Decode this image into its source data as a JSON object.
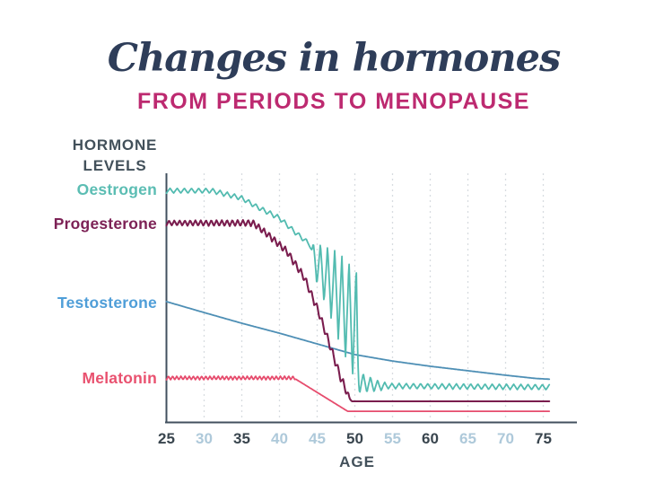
{
  "header": {
    "title": "Changes in hormones",
    "subtitle": "FROM PERIODS TO MENOPAUSE"
  },
  "y_axis_label": {
    "line1": "HORMONE",
    "line2": "LEVELS"
  },
  "x_axis_label": "AGE",
  "colors": {
    "title": "#2e3d59",
    "subtitle": "#bd2a70",
    "axis": "#42505f",
    "gridline": "#d8dce1",
    "tick_dark": "#39454e",
    "tick_light": "#aec9da",
    "axis_text": "#42505a",
    "background": "#ffffff"
  },
  "chart_data": {
    "type": "line",
    "title": "Changes in hormones - from periods to menopause",
    "xlabel": "AGE",
    "ylabel": "HORMONE LEVELS",
    "x_domain": [
      25,
      76
    ],
    "y_scale_note": "relative hormone level 0-100, y axis unlabeled",
    "grid": {
      "vertical_dashed": true,
      "horizontal": false
    },
    "legend_position": "colored name labels left of each line start",
    "x_ticks": [
      {
        "label": "25",
        "emphasis": true
      },
      {
        "label": "30",
        "emphasis": false
      },
      {
        "label": "35",
        "emphasis": true
      },
      {
        "label": "40",
        "emphasis": false
      },
      {
        "label": "45",
        "emphasis": false
      },
      {
        "label": "50",
        "emphasis": true
      },
      {
        "label": "55",
        "emphasis": false
      },
      {
        "label": "60",
        "emphasis": true
      },
      {
        "label": "65",
        "emphasis": false
      },
      {
        "label": "70",
        "emphasis": false
      },
      {
        "label": "75",
        "emphasis": true
      }
    ],
    "series": [
      {
        "name": "Oestrogen",
        "color": "#52bbb0",
        "label_color": "#5bbdb3",
        "width": 1.8,
        "z": 4,
        "pattern": "rippled plateau to ~age 32, gradual rippled decline, violent growing swings ~age 45-50 (perimenopause), sharp fall just after 50, then low flat ripple",
        "points": [
          [
            25,
            93
          ],
          [
            31,
            93
          ],
          [
            33,
            91.5
          ],
          [
            35,
            90
          ],
          [
            37,
            86.5
          ],
          [
            40,
            82
          ],
          [
            42,
            76.5
          ],
          [
            44,
            71.5
          ],
          [
            44.7,
            65
          ],
          [
            47,
            55
          ],
          [
            50.2,
            38
          ],
          [
            50.55,
            16
          ],
          [
            53,
            14.5
          ],
          [
            75.8,
            14
          ]
        ],
        "wave": {
          "period_years": 0.95,
          "amp_profile": [
            [
              25,
              1.0
            ],
            [
              44.2,
              1.0
            ],
            [
              44.7,
              8
            ],
            [
              47,
              15
            ],
            [
              50.2,
              24.5
            ],
            [
              50.55,
              4.5
            ],
            [
              52.5,
              2.8
            ],
            [
              54.5,
              1.1
            ],
            [
              75.8,
              1.1
            ]
          ]
        }
      },
      {
        "name": "Progesterone",
        "color": "#7a1d4e",
        "label_color": "#7d2256",
        "width": 2.1,
        "z": 3,
        "pattern": "jagged plateau to ~age 36, steep jagged staircase fall ages ~38-49, flat low line after ~50",
        "points": [
          [
            25,
            80
          ],
          [
            36.5,
            80
          ],
          [
            38.6,
            75
          ],
          [
            41,
            68.5
          ],
          [
            43.3,
            58
          ],
          [
            45.1,
            45
          ],
          [
            46.9,
            29
          ],
          [
            48.1,
            18
          ],
          [
            49.3,
            9.5
          ],
          [
            49.6,
            8.3
          ],
          [
            75.8,
            8.3
          ]
        ],
        "wave": {
          "period_years": 0.7,
          "amp_profile": [
            [
              25,
              1.0
            ],
            [
              37,
              1.3
            ],
            [
              48.9,
              1.8
            ],
            [
              49.5,
              0
            ],
            [
              75.8,
              0
            ]
          ]
        }
      },
      {
        "name": "Testosterone",
        "color": "#4e8fb5",
        "label_color": "#4f9ed8",
        "width": 1.8,
        "z": 1,
        "pattern": "smooth steady gentle decline across whole age range, flattening slightly after ~50",
        "points": [
          [
            25,
            48.4
          ],
          [
            30,
            44
          ],
          [
            35,
            39.7
          ],
          [
            40,
            35.7
          ],
          [
            45,
            31.4
          ],
          [
            50,
            27.1
          ],
          [
            55,
            24.5
          ],
          [
            60,
            22.4
          ],
          [
            65,
            20.6
          ],
          [
            70,
            18.8
          ],
          [
            74,
            17.5
          ],
          [
            75.8,
            17.2
          ]
        ]
      },
      {
        "name": "Melatonin",
        "color": "#e64c6d",
        "label_color": "#e9516f",
        "width": 1.8,
        "z": 2,
        "pattern": "low rippled flat line to ~age 42, smooth decline to ~age 49, flat very low afterwards",
        "points": [
          [
            25,
            17.7
          ],
          [
            41.9,
            17.7
          ],
          [
            49.05,
            4.3
          ],
          [
            75.8,
            4.3
          ]
        ],
        "wave": {
          "period_years": 0.55,
          "amp_profile": [
            [
              25,
              0.75
            ],
            [
              41.9,
              0.75
            ],
            [
              42.2,
              0
            ],
            [
              75.8,
              0
            ]
          ]
        }
      }
    ]
  }
}
